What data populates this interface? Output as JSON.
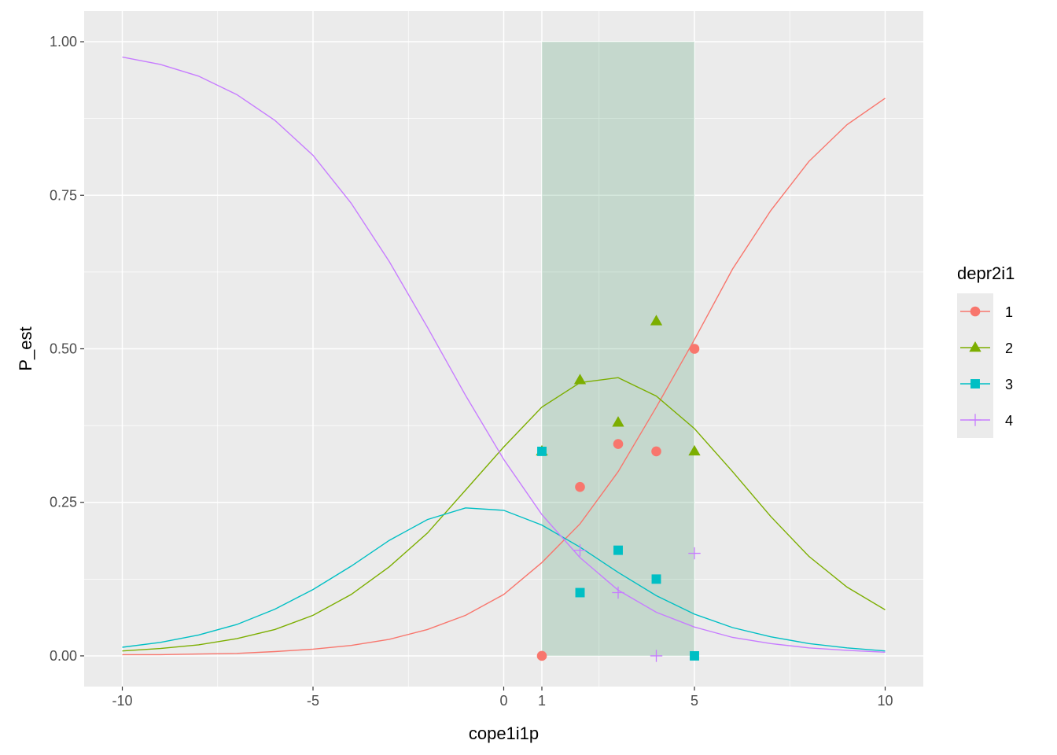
{
  "chart_data": {
    "type": "line",
    "xlabel": "cope1i1p",
    "ylabel": "P_est",
    "xlim": [
      -11,
      11
    ],
    "ylim": [
      -0.05,
      1.05
    ],
    "x_ticks": [
      {
        "value": -10,
        "label": "-10"
      },
      {
        "value": -5,
        "label": "-5"
      },
      {
        "value": 0,
        "label": "0"
      },
      {
        "value": 1,
        "label": "1"
      },
      {
        "value": 5,
        "label": "5"
      },
      {
        "value": 10,
        "label": "10"
      }
    ],
    "x_minor": [
      -7.5,
      -2.5,
      2.5,
      7.5
    ],
    "y_ticks": [
      {
        "value": 0.0,
        "label": "0.00"
      },
      {
        "value": 0.25,
        "label": "0.25"
      },
      {
        "value": 0.5,
        "label": "0.50"
      },
      {
        "value": 0.75,
        "label": "0.75"
      },
      {
        "value": 1.0,
        "label": "1.00"
      }
    ],
    "y_minor": [
      0.125,
      0.375,
      0.625,
      0.875
    ],
    "grid": true,
    "shaded_region": {
      "x": [
        1,
        5
      ],
      "y": [
        0,
        1
      ],
      "color": "#2e8b57",
      "opacity": 0.2
    },
    "legend": {
      "title": "depr2i1",
      "placement": "right"
    },
    "curve_x": [
      -10,
      -9,
      -8,
      -7,
      -6,
      -5,
      -4,
      -3,
      -2,
      -1,
      0,
      1,
      2,
      3,
      4,
      5,
      6,
      7,
      8,
      9,
      10
    ],
    "series": [
      {
        "name": "1",
        "color": "#F8766D",
        "marker": "circle",
        "curve": [
          0.002,
          0.002,
          0.003,
          0.004,
          0.007,
          0.011,
          0.017,
          0.027,
          0.043,
          0.066,
          0.1,
          0.152,
          0.215,
          0.3,
          0.405,
          0.515,
          0.63,
          0.725,
          0.805,
          0.865,
          0.908
        ],
        "points": [
          {
            "x": 1,
            "y": 0.0
          },
          {
            "x": 2,
            "y": 0.275
          },
          {
            "x": 3,
            "y": 0.345
          },
          {
            "x": 4,
            "y": 0.333
          },
          {
            "x": 5,
            "y": 0.5
          }
        ]
      },
      {
        "name": "2",
        "color": "#7CAE00",
        "marker": "triangle",
        "curve": [
          0.008,
          0.012,
          0.018,
          0.028,
          0.043,
          0.066,
          0.1,
          0.145,
          0.2,
          0.27,
          0.34,
          0.405,
          0.445,
          0.453,
          0.423,
          0.37,
          0.3,
          0.227,
          0.162,
          0.112,
          0.075
        ],
        "points": [
          {
            "x": 1,
            "y": 0.333
          },
          {
            "x": 2,
            "y": 0.449
          },
          {
            "x": 3,
            "y": 0.38
          },
          {
            "x": 4,
            "y": 0.545
          },
          {
            "x": 5,
            "y": 0.333
          }
        ]
      },
      {
        "name": "3",
        "color": "#00BFC4",
        "marker": "square",
        "curve": [
          0.014,
          0.022,
          0.034,
          0.051,
          0.076,
          0.108,
          0.146,
          0.188,
          0.222,
          0.241,
          0.237,
          0.213,
          0.177,
          0.136,
          0.098,
          0.068,
          0.046,
          0.031,
          0.02,
          0.013,
          0.008
        ],
        "points": [
          {
            "x": 1,
            "y": 0.333
          },
          {
            "x": 2,
            "y": 0.103
          },
          {
            "x": 3,
            "y": 0.172
          },
          {
            "x": 4,
            "y": 0.125
          },
          {
            "x": 5,
            "y": 0.0
          }
        ]
      },
      {
        "name": "4",
        "color": "#C77CFF",
        "marker": "plus",
        "curve": [
          0.975,
          0.963,
          0.944,
          0.914,
          0.872,
          0.815,
          0.737,
          0.642,
          0.535,
          0.424,
          0.32,
          0.23,
          0.16,
          0.107,
          0.071,
          0.047,
          0.03,
          0.02,
          0.013,
          0.009,
          0.006
        ],
        "points": [
          {
            "x": 2,
            "y": 0.172
          },
          {
            "x": 3,
            "y": 0.103
          },
          {
            "x": 4,
            "y": 0.0
          },
          {
            "x": 5,
            "y": 0.167
          }
        ]
      }
    ]
  }
}
